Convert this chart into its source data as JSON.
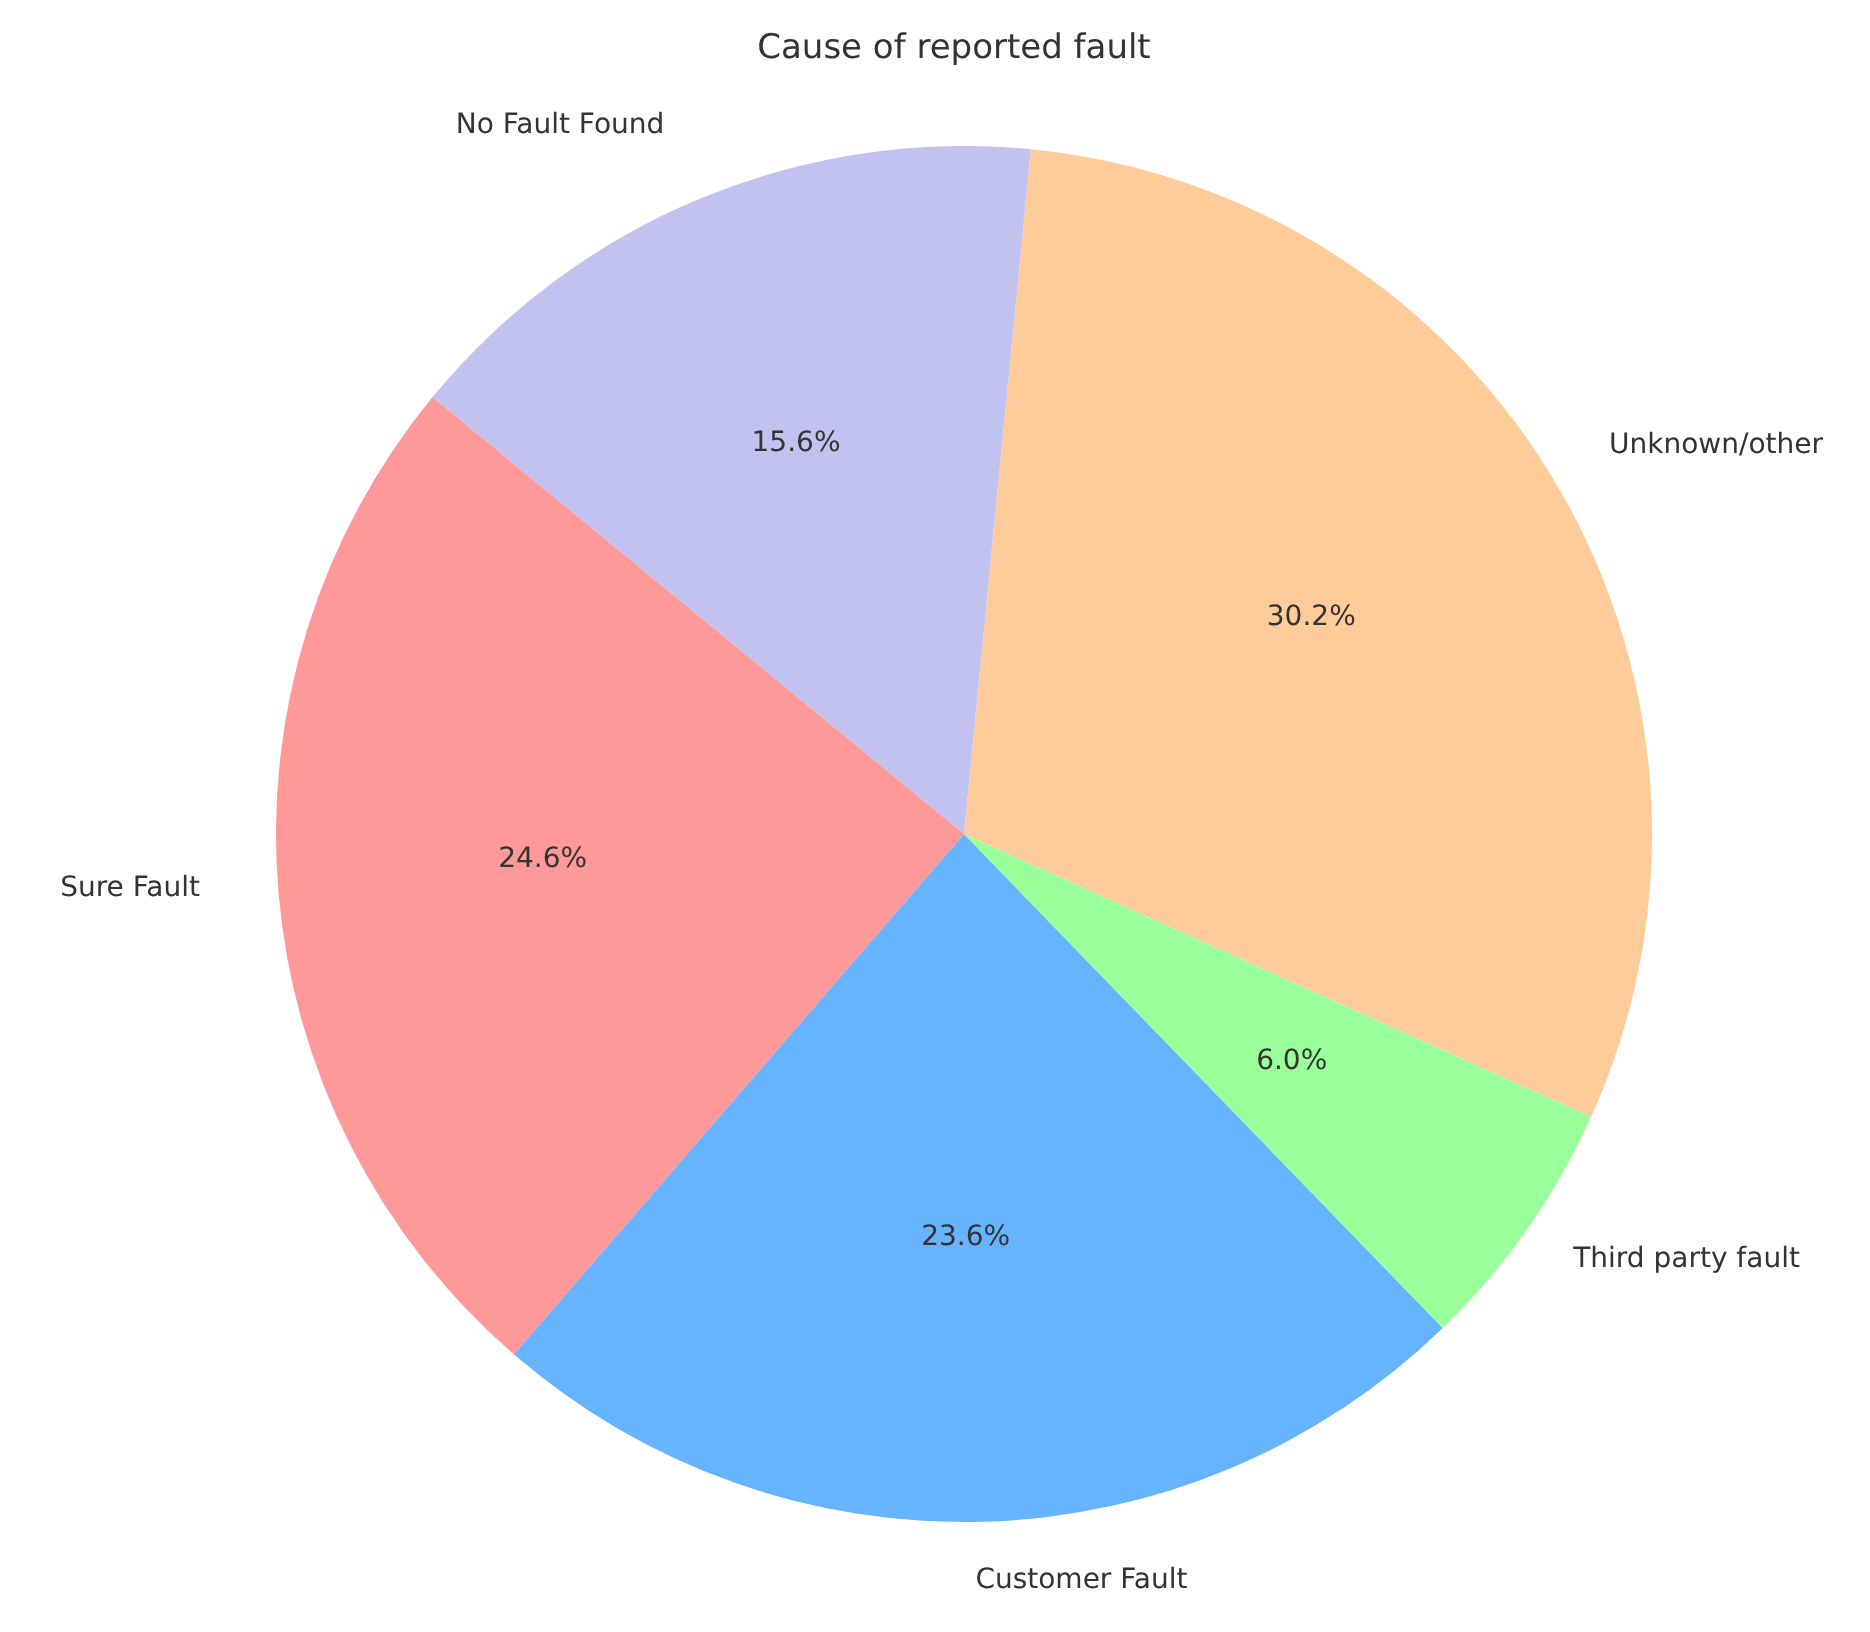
{
  "chart_data": {
    "type": "pie",
    "title": "Cause of reported fault",
    "categories": [
      "Unknown/other",
      "No Fault Found",
      "Sure Fault",
      "Customer Fault",
      "Third party fault"
    ],
    "values": [
      30.2,
      15.6,
      24.6,
      23.6,
      6.0
    ],
    "value_labels": [
      "30.2%",
      "15.6%",
      "24.6%",
      "23.6%",
      "6.0%"
    ],
    "colors": [
      "#ffcc99",
      "#c2c2f0",
      "#ff9999",
      "#66b3ff",
      "#99ff99"
    ],
    "legend": false
  }
}
